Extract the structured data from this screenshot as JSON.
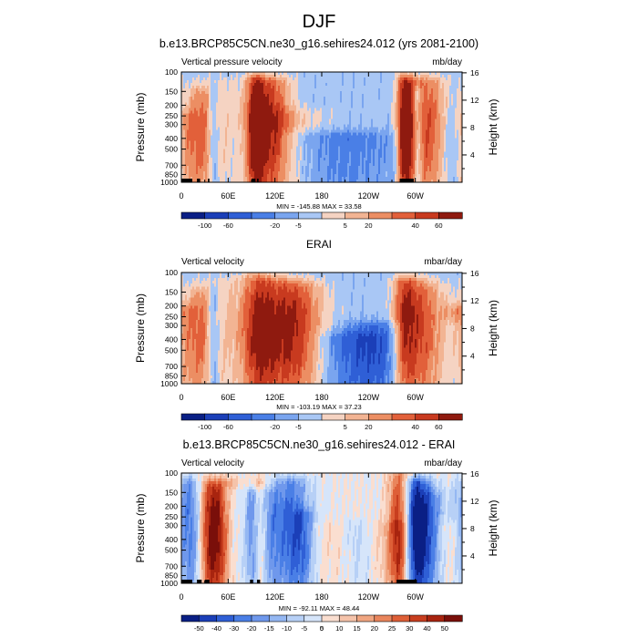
{
  "figure": {
    "title": "DJF"
  },
  "colors": {
    "div12": [
      "#0a1f85",
      "#1b3fb8",
      "#2f5fd6",
      "#4a7fe6",
      "#7aa5ef",
      "#a9c7f5",
      "#f5d3c2",
      "#f2b493",
      "#ec8e63",
      "#e2603a",
      "#c83a1f",
      "#8f1a0f"
    ],
    "div16": [
      "#0a1f85",
      "#1b3fb8",
      "#2f5fd6",
      "#4a7fe6",
      "#6f98ec",
      "#94b7f2",
      "#b7d0f6",
      "#d6e5fa",
      "#faded0",
      "#f5c3aa",
      "#f0a581",
      "#e9855c",
      "#de5f37",
      "#c83e1f",
      "#a8240f",
      "#7a0f0a"
    ]
  },
  "chart_data": [
    {
      "type": "heatmap",
      "id": "model",
      "title": "b.e13.BRCP85C5CN.ne30_g16.sehires24.012 (yrs 2081-2100)",
      "left_label": "Vertical pressure velocity",
      "right_label": "mb/day",
      "ylabel": "Pressure (mb)",
      "ylabel_right": "Height (km)",
      "xticks": [
        "0",
        "60E",
        "120E",
        "180",
        "120W",
        "60W"
      ],
      "xtick_values": [
        0,
        60,
        120,
        180,
        240,
        300
      ],
      "xlim": [
        0,
        360
      ],
      "pressure_ticks": [
        "100",
        "150",
        "200",
        "250",
        "300",
        "400",
        "500",
        "700",
        "850",
        "1000"
      ],
      "pressure_values": [
        100,
        150,
        200,
        250,
        300,
        400,
        500,
        700,
        850,
        1000
      ],
      "height_ticks": [
        "16",
        "12",
        "8",
        "4"
      ],
      "height_values": [
        16,
        12,
        8,
        4
      ],
      "stats": "MIN = -145.88  MAX = 33.58",
      "levels": [
        "-100",
        "-60",
        "-20",
        "-5",
        "5",
        "20",
        "40",
        "60"
      ],
      "palette": "div12",
      "bias": -0.1,
      "bars": [
        [
          -2,
          0.44,
          0.6,
          13,
          0.58
        ],
        [
          26,
          0.52,
          0.8,
          14,
          0.6
        ],
        [
          41,
          -0.45,
          0.8,
          5,
          0.7
        ],
        [
          55,
          0.18,
          0.9,
          40,
          0.55
        ],
        [
          95,
          0.78,
          0.92,
          8,
          0.6
        ],
        [
          105,
          0.65,
          0.9,
          14,
          0.6
        ],
        [
          125,
          0.55,
          0.9,
          14,
          0.6
        ],
        [
          150,
          0.2,
          0.6,
          25,
          0.55
        ],
        [
          200,
          -0.35,
          0.4,
          60,
          0.6
        ],
        [
          285,
          0.9,
          0.92,
          6,
          0.58
        ],
        [
          295,
          0.75,
          0.9,
          10,
          0.6
        ],
        [
          303,
          -0.6,
          0.8,
          4,
          0.8
        ],
        [
          318,
          0.72,
          0.9,
          14,
          0.58
        ],
        [
          350,
          -0.45,
          0.6,
          10,
          0.45
        ]
      ],
      "surface": [
        [
          0,
          14
        ],
        [
          20,
          24
        ],
        [
          34,
          36
        ],
        [
          90,
          95
        ],
        [
          97,
          99
        ],
        [
          280,
          298
        ]
      ]
    },
    {
      "type": "heatmap",
      "id": "obs",
      "title": "ERAI",
      "left_label": "Vertical velocity",
      "right_label": "mbar/day",
      "ylabel": "Pressure (mb)",
      "ylabel_right": "Height (km)",
      "xticks": [
        "0",
        "60E",
        "120E",
        "180",
        "120W",
        "60W"
      ],
      "xtick_values": [
        0,
        60,
        120,
        180,
        240,
        300
      ],
      "xlim": [
        0,
        360
      ],
      "pressure_ticks": [
        "100",
        "150",
        "200",
        "250",
        "300",
        "400",
        "500",
        "700",
        "850",
        "1000"
      ],
      "pressure_values": [
        100,
        150,
        200,
        250,
        300,
        400,
        500,
        700,
        850,
        1000
      ],
      "height_ticks": [
        "16",
        "12",
        "8",
        "4"
      ],
      "height_values": [
        16,
        12,
        8,
        4
      ],
      "stats": "MIN = -103.19  MAX = 37.23",
      "levels": [
        "-100",
        "-60",
        "-20",
        "-5",
        "5",
        "20",
        "40",
        "60"
      ],
      "palette": "div12",
      "bias": -0.1,
      "bars": [
        [
          -3,
          0.45,
          0.65,
          14,
          0.6
        ],
        [
          25,
          0.45,
          0.8,
          14,
          0.6
        ],
        [
          41,
          -0.5,
          0.8,
          6,
          0.75
        ],
        [
          55,
          0.25,
          0.9,
          35,
          0.55
        ],
        [
          98,
          0.6,
          0.95,
          14,
          0.6
        ],
        [
          125,
          0.7,
          0.9,
          25,
          0.55
        ],
        [
          155,
          0.55,
          0.85,
          22,
          0.55
        ],
        [
          215,
          -0.3,
          0.4,
          40,
          0.55
        ],
        [
          248,
          -0.4,
          0.5,
          30,
          0.55
        ],
        [
          285,
          0.75,
          0.9,
          10,
          0.6
        ],
        [
          300,
          0.55,
          0.9,
          14,
          0.6
        ],
        [
          320,
          0.45,
          0.85,
          16,
          0.6
        ],
        [
          350,
          -0.3,
          0.5,
          12,
          0.45
        ]
      ],
      "surface": []
    },
    {
      "type": "heatmap",
      "id": "diff",
      "title": "b.e13.BRCP85C5CN.ne30_g16.sehires24.012 - ERAI",
      "left_label": "Vertical velocity",
      "right_label": "mbar/day",
      "ylabel": "Pressure (mb)",
      "ylabel_right": "Height (km)",
      "xticks": [
        "0",
        "60E",
        "120E",
        "180",
        "120W",
        "60W"
      ],
      "xtick_values": [
        0,
        60,
        120,
        180,
        240,
        300
      ],
      "xlim": [
        0,
        360
      ],
      "pressure_ticks": [
        "100",
        "150",
        "200",
        "250",
        "300",
        "400",
        "500",
        "700",
        "850",
        "1000"
      ],
      "pressure_values": [
        100,
        150,
        200,
        250,
        300,
        400,
        500,
        700,
        850,
        1000
      ],
      "height_ticks": [
        "16",
        "12",
        "8",
        "4"
      ],
      "height_values": [
        16,
        12,
        8,
        4
      ],
      "stats": "MIN = -92.11  MAX = 48.44",
      "levels": [
        "-50",
        "-40",
        "-30",
        "-20",
        "-15",
        "-10",
        "-5",
        "0",
        "5",
        "10",
        "15",
        "20",
        "25",
        "30",
        "40",
        "50"
      ],
      "palette": "div16",
      "bias": 0,
      "bars": [
        [
          12,
          -0.65,
          0.9,
          14,
          0.55
        ],
        [
          30,
          0.5,
          0.9,
          9,
          0.55
        ],
        [
          42,
          0.45,
          0.85,
          8,
          0.6
        ],
        [
          52,
          0.6,
          0.9,
          14,
          0.55
        ],
        [
          66,
          -0.3,
          0.8,
          9,
          0.55
        ],
        [
          92,
          -0.6,
          0.8,
          7,
          0.6
        ],
        [
          100,
          0.4,
          0.9,
          7,
          0.6
        ],
        [
          112,
          -0.35,
          0.8,
          9,
          0.55
        ],
        [
          140,
          -0.7,
          0.9,
          18,
          0.55
        ],
        [
          157,
          -0.3,
          0.6,
          10,
          0.5
        ],
        [
          180,
          0.08,
          0.5,
          60,
          0.6
        ],
        [
          228,
          -0.3,
          0.5,
          15,
          0.6
        ],
        [
          252,
          0.12,
          0.5,
          35,
          0.55
        ],
        [
          280,
          0.85,
          0.95,
          10,
          0.6
        ],
        [
          296,
          -0.6,
          0.9,
          9,
          0.6
        ],
        [
          308,
          -0.75,
          0.9,
          12,
          0.58
        ],
        [
          323,
          -0.3,
          0.8,
          12,
          0.55
        ],
        [
          345,
          0.15,
          0.5,
          15,
          0.5
        ]
      ],
      "surface": [
        [
          0,
          14
        ],
        [
          20,
          26
        ],
        [
          30,
          36
        ],
        [
          88,
          92
        ],
        [
          97,
          101
        ],
        [
          276,
          302
        ]
      ]
    }
  ]
}
